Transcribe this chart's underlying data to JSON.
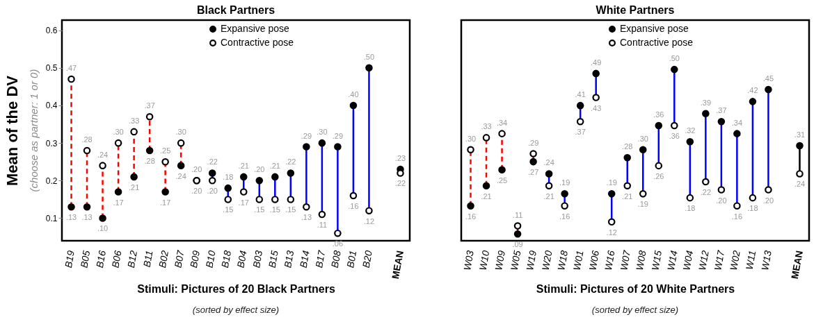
{
  "chart_data": [
    {
      "type": "scatter",
      "title": "Black Partners",
      "xlabel": "Stimuli: Pictures of 20 Black Partners",
      "ylabel": "Mean of the DV",
      "annotations": [
        "(choose as partner: 1 or 0)",
        "(sorted by effect size)"
      ],
      "categories": [
        "B19",
        "B05",
        "B16",
        "B06",
        "B12",
        "B11",
        "B02",
        "B07",
        "B09",
        "B10",
        "B18",
        "B04",
        "B03",
        "B15",
        "B13",
        "B14",
        "B17",
        "B08",
        "B01",
        "B20",
        null,
        "MEAN"
      ],
      "ylim": [
        0.04,
        0.627
      ],
      "yticks": [
        0.1,
        0.2,
        0.3,
        0.4,
        0.5,
        0.6
      ],
      "legend": "top",
      "marker": "circle",
      "data_labels": true,
      "series": [
        {
          "name": "Expansive pose",
          "color": "#000000",
          "values": [
            0.13,
            0.13,
            0.1,
            0.17,
            0.21,
            0.28,
            0.17,
            0.24,
            0.2,
            0.22,
            0.18,
            0.21,
            0.2,
            0.21,
            0.22,
            0.29,
            0.3,
            0.29,
            0.4,
            0.5,
            null,
            0.23
          ],
          "value_labels": [
            ".13",
            ".13",
            ".10",
            ".17",
            ".21",
            ".28",
            ".17",
            ".24",
            ".20",
            ".22",
            ".18",
            ".21",
            ".20",
            ".21",
            ".22",
            ".29",
            ".30",
            ".29",
            ".40",
            ".50",
            null,
            ".23"
          ]
        },
        {
          "name": "Contractive pose",
          "color": "#000000",
          "values": [
            0.47,
            0.28,
            0.24,
            0.3,
            0.33,
            0.37,
            0.25,
            0.3,
            0.2,
            0.2,
            0.15,
            0.17,
            0.15,
            0.15,
            0.15,
            0.13,
            0.11,
            0.06,
            0.16,
            0.12,
            null,
            0.22
          ],
          "value_labels": [
            ".47",
            ".28",
            ".24",
            ".30",
            ".33",
            ".37",
            ".25",
            ".30",
            ".20",
            ".20",
            ".15",
            ".17",
            ".15",
            ".15",
            ".15",
            ".13",
            ".11",
            ".06",
            ".16",
            ".12",
            null,
            ".22"
          ]
        }
      ]
    },
    {
      "type": "scatter",
      "title": "White Partners",
      "xlabel": "Stimuli: Pictures of 20 White Partners",
      "annotations": [
        "(sorted by effect size)"
      ],
      "categories": [
        "W03",
        "W10",
        "W09",
        "W05",
        "W19",
        "W20",
        "W18",
        "W01",
        "W06",
        "W16",
        "W07",
        "W08",
        "W15",
        "W14",
        "W04",
        "W12",
        "W17",
        "W02",
        "W11",
        "W13",
        null,
        "MEAN"
      ],
      "ylim": [
        0.073,
        0.623
      ],
      "tick_labels": "x",
      "legend": "top",
      "marker": "circle",
      "data_labels": true,
      "series": [
        {
          "name": "Expansive pose",
          "color": "#000000",
          "values": [
            0.16,
            0.21,
            0.25,
            0.09,
            0.27,
            0.24,
            0.19,
            0.41,
            0.49,
            0.19,
            0.28,
            0.3,
            0.36,
            0.5,
            0.32,
            0.39,
            0.37,
            0.34,
            0.42,
            0.45,
            null,
            0.31
          ],
          "value_labels": [
            ".16",
            ".21",
            ".25",
            ".09",
            ".27",
            ".24",
            ".19",
            ".41",
            ".49",
            ".19",
            ".28",
            ".30",
            ".36",
            ".50",
            ".32",
            ".39",
            ".37",
            ".34",
            ".42",
            ".45",
            null,
            ".31"
          ]
        },
        {
          "name": "Contractive pose",
          "color": "#000000",
          "values": [
            0.3,
            0.33,
            0.34,
            0.11,
            0.29,
            0.21,
            0.16,
            0.37,
            0.43,
            0.12,
            0.21,
            0.19,
            0.26,
            0.36,
            0.18,
            0.22,
            0.2,
            0.16,
            0.18,
            0.2,
            null,
            0.24
          ],
          "value_labels": [
            ".30",
            ".33",
            ".34",
            ".11",
            ".29",
            ".21",
            ".16",
            ".37",
            ".43",
            ".12",
            ".21",
            ".19",
            ".26",
            ".36",
            ".18",
            ".22",
            ".20",
            ".16",
            ".18",
            ".20",
            null,
            ".24"
          ]
        }
      ]
    }
  ]
}
